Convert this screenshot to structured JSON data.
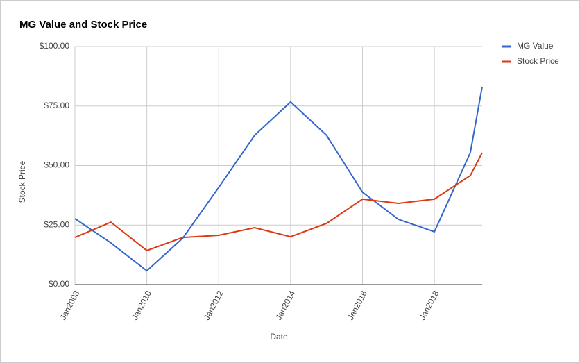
{
  "chart_data": {
    "type": "line",
    "title": "MG Value and Stock Price",
    "x_label": "Date",
    "y_label": "Stock Price",
    "x": [
      2008,
      2009,
      2010,
      2011,
      2012,
      2013,
      2014,
      2015,
      2016,
      2017,
      2018,
      2019,
      2019.33
    ],
    "xlim": [
      2008,
      2019.33
    ],
    "xticks": [
      {
        "value": 2008,
        "label": "Jan2008"
      },
      {
        "value": 2010,
        "label": "Jan2010"
      },
      {
        "value": 2012,
        "label": "Jan2012"
      },
      {
        "value": 2014,
        "label": "Jan2014"
      },
      {
        "value": 2016,
        "label": "Jan2016"
      },
      {
        "value": 2018,
        "label": "Jan2018"
      }
    ],
    "ylim": [
      0,
      100
    ],
    "yticks": [
      {
        "value": 0,
        "label": "$0.00"
      },
      {
        "value": 25,
        "label": "$25.00"
      },
      {
        "value": 50,
        "label": "$50.00"
      },
      {
        "value": 75,
        "label": "$75.00"
      },
      {
        "value": 100,
        "label": "$100.00"
      }
    ],
    "grid": true,
    "legend": "right",
    "series": [
      {
        "name": "MG Value",
        "color": "#3366cc",
        "values": [
          27.7,
          17.5,
          5.8,
          19.5,
          40.8,
          62.7,
          76.7,
          62.7,
          38.8,
          27.4,
          22.2,
          55.4,
          83.1
        ]
      },
      {
        "name": "Stock Price",
        "color": "#dc3912",
        "values": [
          19.8,
          26.2,
          14.3,
          19.8,
          20.7,
          23.9,
          20.1,
          25.7,
          35.9,
          34.1,
          35.9,
          45.8,
          55.4
        ]
      }
    ]
  }
}
